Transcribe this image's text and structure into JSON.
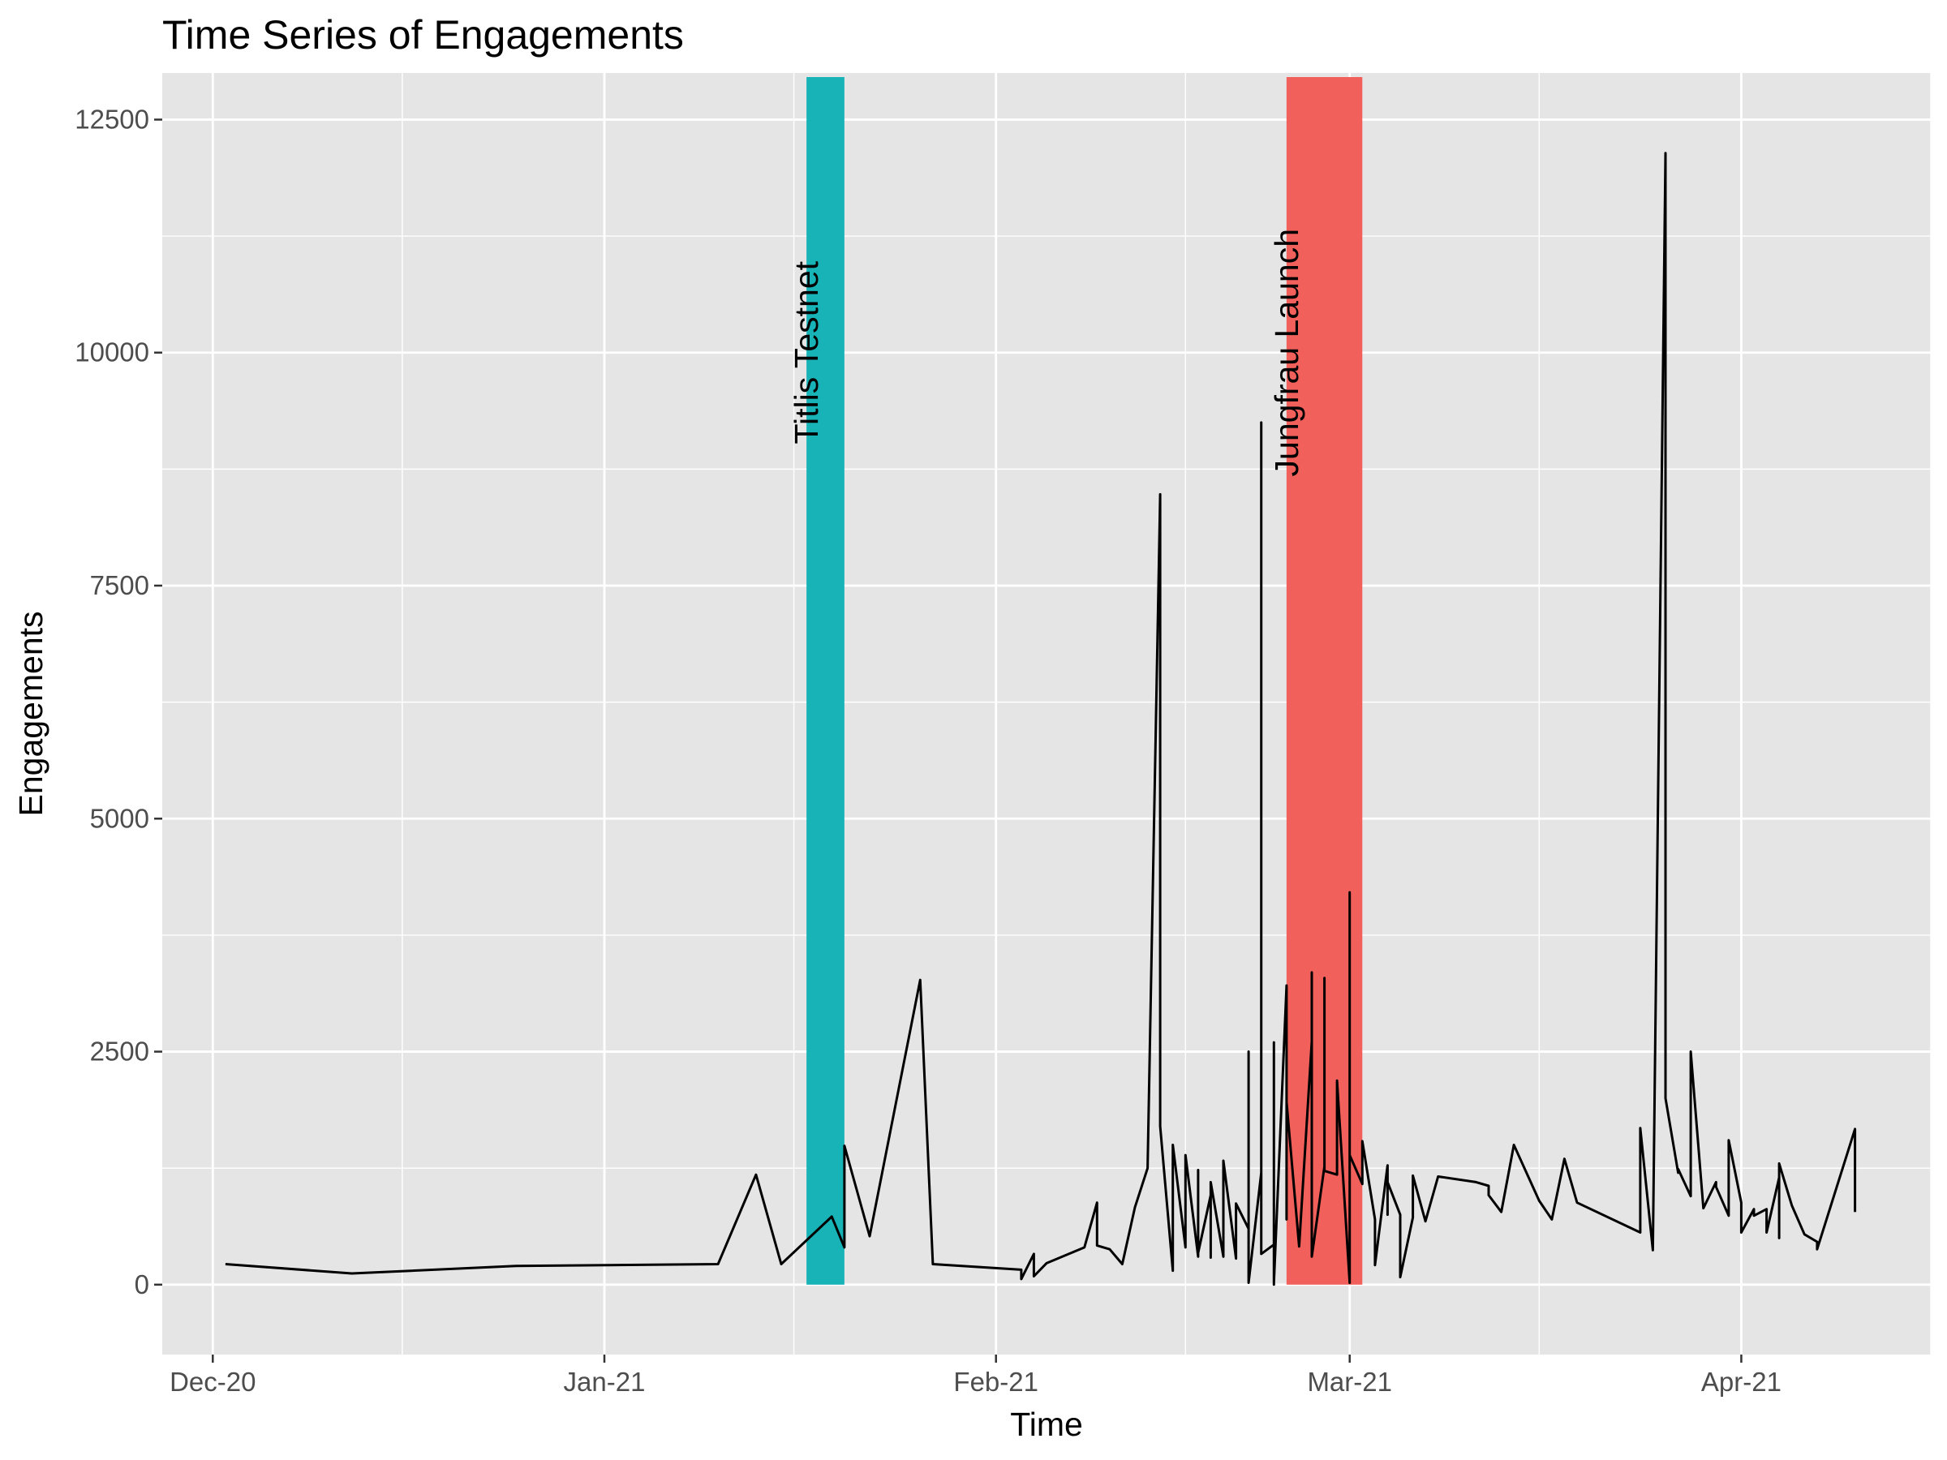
{
  "chart_data": {
    "type": "line",
    "title": "Time Series of Engagements",
    "xlabel": "Time",
    "ylabel": "Engagements",
    "xlim": [
      "2020-11-27",
      "2021-04-16"
    ],
    "ylim": [
      -750,
      13000
    ],
    "x_ticks": [
      {
        "date": "2020-12-01",
        "label": "Dec-20"
      },
      {
        "date": "2021-01-01",
        "label": "Jan-21"
      },
      {
        "date": "2021-02-01",
        "label": "Feb-21"
      },
      {
        "date": "2021-03-01",
        "label": "Mar-21"
      },
      {
        "date": "2021-04-01",
        "label": "Apr-21"
      }
    ],
    "x_minor_ticks": [
      "2020-12-16",
      "2021-01-16",
      "2021-02-16",
      "2021-03-16",
      "2021-04-16"
    ],
    "y_ticks": [
      0,
      2500,
      5000,
      7500,
      10000,
      12500
    ],
    "y_minor_ticks": [
      1250,
      3750,
      6250,
      8750,
      11250
    ],
    "grid": true,
    "annotations": [
      {
        "label": "Titlis Testnet",
        "start": "2021-01-17",
        "end": "2021-01-20",
        "color": "#17b3b7"
      },
      {
        "label": "Jungfrau Launch",
        "start": "2021-02-24",
        "end": "2021-03-02",
        "color": "#f2605c"
      }
    ],
    "series": [
      {
        "color": "#000000",
        "points": [
          [
            "2020-12-02",
            220
          ],
          [
            "2020-12-12",
            120
          ],
          [
            "2020-12-25",
            200
          ],
          [
            "2021-01-10",
            220
          ],
          [
            "2021-01-13",
            1180
          ],
          [
            "2021-01-15",
            220
          ],
          [
            "2021-01-19",
            730
          ],
          [
            "2021-01-20",
            400
          ],
          [
            "2021-01-20",
            1490
          ],
          [
            "2021-01-22",
            520
          ],
          [
            "2021-01-26",
            3270
          ],
          [
            "2021-01-27",
            220
          ],
          [
            "2021-02-03",
            160
          ],
          [
            "2021-02-03",
            60
          ],
          [
            "2021-02-04",
            330
          ],
          [
            "2021-02-04",
            90
          ],
          [
            "2021-02-05",
            230
          ],
          [
            "2021-02-08",
            400
          ],
          [
            "2021-02-09",
            880
          ],
          [
            "2021-02-09",
            420
          ],
          [
            "2021-02-10",
            380
          ],
          [
            "2021-02-11",
            220
          ],
          [
            "2021-02-12",
            830
          ],
          [
            "2021-02-13",
            1250
          ],
          [
            "2021-02-14",
            8480
          ],
          [
            "2021-02-14",
            1700
          ],
          [
            "2021-02-15",
            150
          ],
          [
            "2021-02-15",
            1500
          ],
          [
            "2021-02-16",
            400
          ],
          [
            "2021-02-16",
            1390
          ],
          [
            "2021-02-17",
            300
          ],
          [
            "2021-02-17",
            1230
          ],
          [
            "2021-02-17",
            340
          ],
          [
            "2021-02-18",
            960
          ],
          [
            "2021-02-18",
            290
          ],
          [
            "2021-02-18",
            1100
          ],
          [
            "2021-02-19",
            300
          ],
          [
            "2021-02-19",
            1330
          ],
          [
            "2021-02-20",
            280
          ],
          [
            "2021-02-20",
            870
          ],
          [
            "2021-02-21",
            600
          ],
          [
            "2021-02-21",
            2500
          ],
          [
            "2021-02-21",
            20
          ],
          [
            "2021-02-22",
            1200
          ],
          [
            "2021-02-22",
            9250
          ],
          [
            "2021-02-22",
            330
          ],
          [
            "2021-02-23",
            430
          ],
          [
            "2021-02-23",
            0
          ],
          [
            "2021-02-23",
            2600
          ],
          [
            "2021-02-23",
            20
          ],
          [
            "2021-02-24",
            3210
          ],
          [
            "2021-02-24",
            700
          ],
          [
            "2021-02-24",
            1960
          ],
          [
            "2021-02-25",
            410
          ],
          [
            "2021-02-26",
            2610
          ],
          [
            "2021-02-26",
            3350
          ],
          [
            "2021-02-26",
            300
          ],
          [
            "2021-02-27",
            1270
          ],
          [
            "2021-02-27",
            3290
          ],
          [
            "2021-02-27",
            1220
          ],
          [
            "2021-02-28",
            1180
          ],
          [
            "2021-02-28",
            2190
          ],
          [
            "2021-03-01",
            20
          ],
          [
            "2021-03-01",
            4210
          ],
          [
            "2021-03-01",
            1390
          ],
          [
            "2021-03-02",
            1080
          ],
          [
            "2021-03-02",
            1540
          ],
          [
            "2021-03-03",
            700
          ],
          [
            "2021-03-03",
            210
          ],
          [
            "2021-03-04",
            1280
          ],
          [
            "2021-03-04",
            750
          ],
          [
            "2021-03-04",
            1100
          ],
          [
            "2021-03-05",
            750
          ],
          [
            "2021-03-05",
            80
          ],
          [
            "2021-03-06",
            720
          ],
          [
            "2021-03-06",
            1170
          ],
          [
            "2021-03-07",
            680
          ],
          [
            "2021-03-08",
            1160
          ],
          [
            "2021-03-11",
            1100
          ],
          [
            "2021-03-12",
            1060
          ],
          [
            "2021-03-12",
            960
          ],
          [
            "2021-03-13",
            780
          ],
          [
            "2021-03-14",
            1500
          ],
          [
            "2021-03-16",
            900
          ],
          [
            "2021-03-17",
            700
          ],
          [
            "2021-03-18",
            1350
          ],
          [
            "2021-03-19",
            880
          ],
          [
            "2021-03-24",
            560
          ],
          [
            "2021-03-24",
            1680
          ],
          [
            "2021-03-25",
            370
          ],
          [
            "2021-03-26",
            12140
          ],
          [
            "2021-03-26",
            2000
          ],
          [
            "2021-03-27",
            1200
          ],
          [
            "2021-03-27",
            1240
          ],
          [
            "2021-03-28",
            950
          ],
          [
            "2021-03-28",
            2500
          ],
          [
            "2021-03-29",
            820
          ],
          [
            "2021-03-30",
            1100
          ],
          [
            "2021-03-30",
            1050
          ],
          [
            "2021-03-31",
            740
          ],
          [
            "2021-03-31",
            1550
          ],
          [
            "2021-04-01",
            880
          ],
          [
            "2021-04-01",
            560
          ],
          [
            "2021-04-02",
            810
          ],
          [
            "2021-04-02",
            740
          ],
          [
            "2021-04-03",
            810
          ],
          [
            "2021-04-03",
            560
          ],
          [
            "2021-04-04",
            1150
          ],
          [
            "2021-04-04",
            500
          ],
          [
            "2021-04-04",
            1300
          ],
          [
            "2021-04-05",
            850
          ],
          [
            "2021-04-06",
            540
          ],
          [
            "2021-04-07",
            460
          ],
          [
            "2021-04-07",
            380
          ],
          [
            "2021-04-10",
            1670
          ],
          [
            "2021-04-10",
            780
          ]
        ]
      }
    ]
  }
}
